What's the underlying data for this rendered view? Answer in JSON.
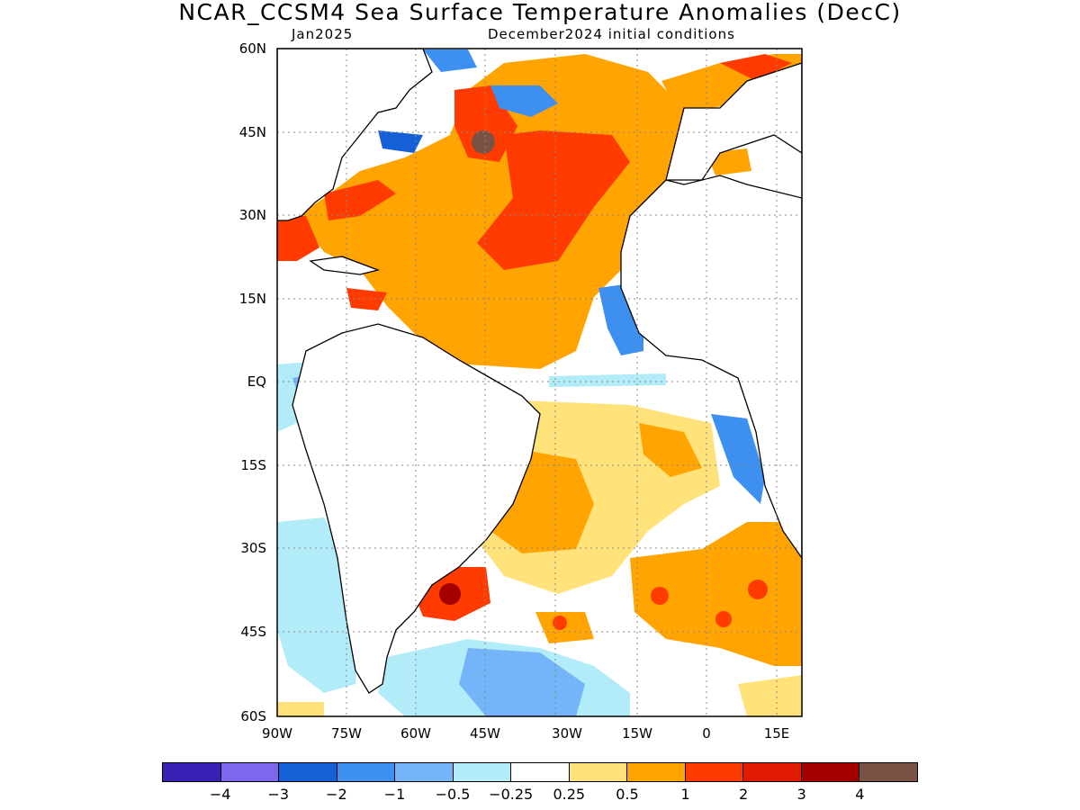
{
  "title": "NCAR_CCSM4 Sea Surface Temperature Anomalies (DecC)",
  "subtitle_left": "Jan2025",
  "subtitle_right": "December2024 initial conditions",
  "map": {
    "lon_range": [
      -90,
      18
    ],
    "lat_range": [
      -60,
      60
    ],
    "lat_ticks": [
      "60N",
      "45N",
      "30N",
      "15N",
      "EQ",
      "15S",
      "30S",
      "45S",
      "60S"
    ],
    "lon_ticks": [
      "90W",
      "75W",
      "60W",
      "45W",
      "30W",
      "15W",
      "0",
      "15E"
    ],
    "grid": "dotted"
  },
  "colorbar": {
    "labels": [
      "-4",
      "-3",
      "-2",
      "-1",
      "-0.5",
      "-0.25",
      "0.25",
      "0.5",
      "1",
      "2",
      "3",
      "4"
    ],
    "colors": [
      "#3a1fb4",
      "#7b68ee",
      "#1560d6",
      "#3d8ff0",
      "#74b4f8",
      "#b2ecf8",
      "#ffffff",
      "#ffe27a",
      "#ffa400",
      "#ff3b00",
      "#e01a00",
      "#a40000",
      "#7a5244"
    ]
  }
}
